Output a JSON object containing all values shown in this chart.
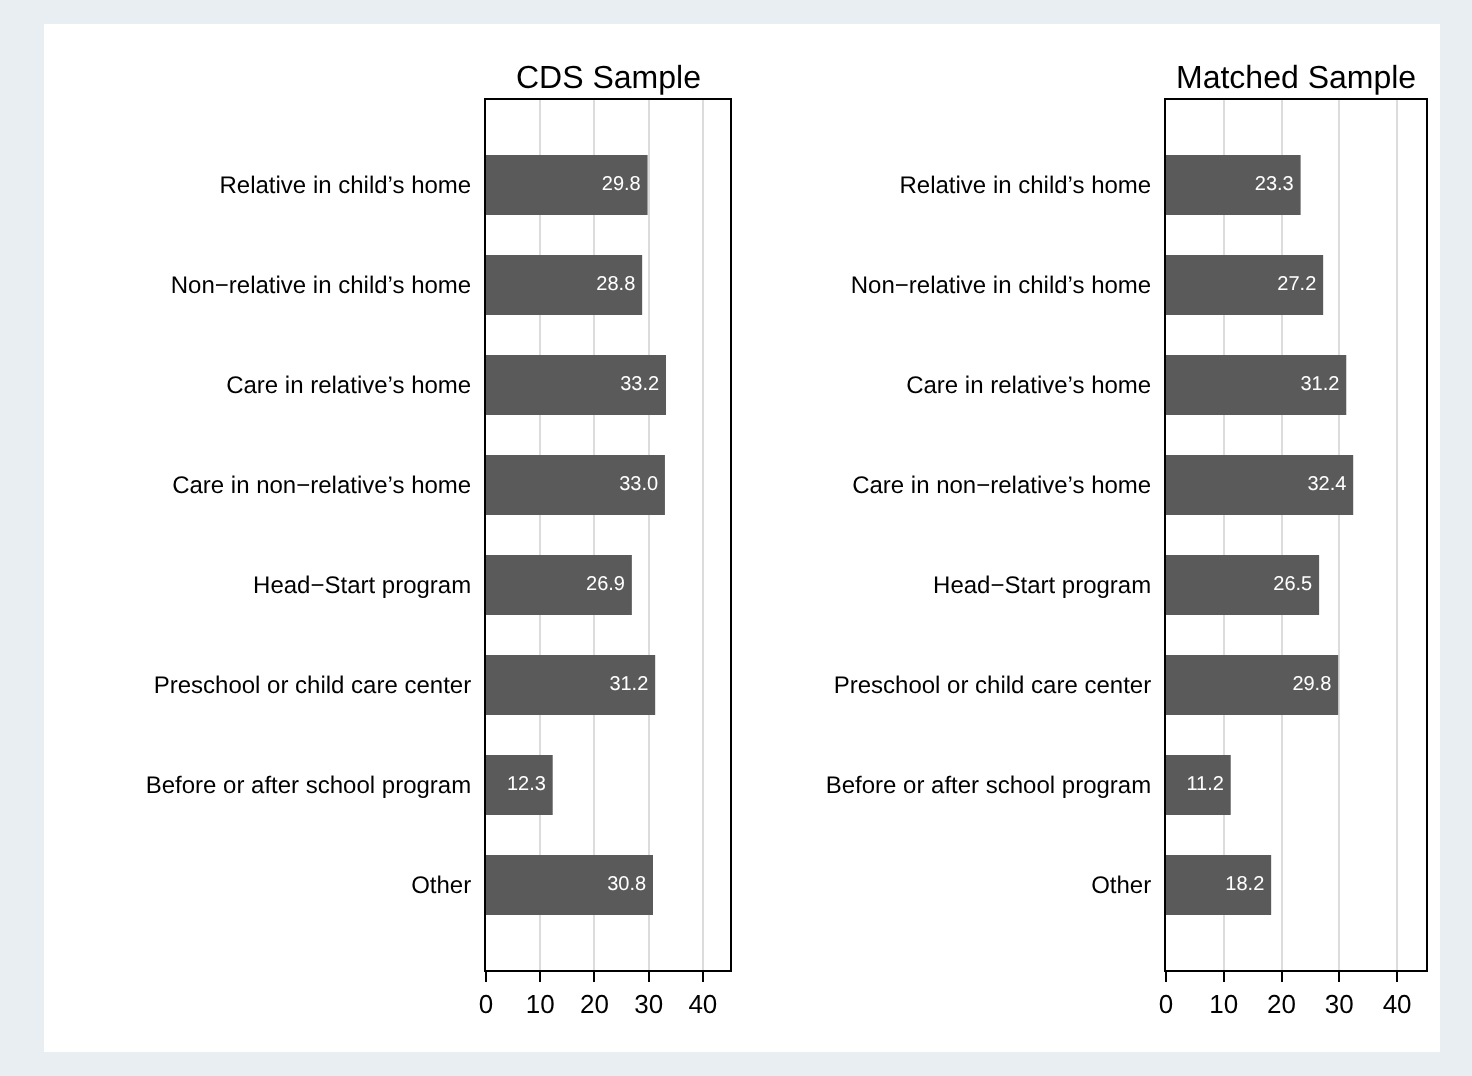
{
  "chart_data": [
    {
      "type": "bar",
      "orientation": "horizontal",
      "title": "CDS Sample",
      "categories": [
        "Relative in child’s home",
        "Non−relative in child’s home",
        "Care in relative’s home",
        "Care in non−relative’s home",
        "Head−Start program",
        "Preschool or child care center",
        "Before or after school program",
        "Other"
      ],
      "values": [
        29.8,
        28.8,
        33.2,
        33.0,
        26.9,
        31.2,
        12.3,
        30.8
      ],
      "value_labels": [
        "29.8",
        "28.8",
        "33.2",
        "33.0",
        "26.9",
        "31.2",
        "12.3",
        "30.8"
      ],
      "color": "#5a5a5a",
      "xlim": [
        0,
        45
      ],
      "xticks": [
        0,
        10,
        20,
        30,
        40
      ],
      "grid": "x"
    },
    {
      "type": "bar",
      "orientation": "horizontal",
      "title": "Matched Sample",
      "categories": [
        "Relative in child’s home",
        "Non−relative in child’s home",
        "Care in relative’s home",
        "Care in non−relative’s home",
        "Head−Start program",
        "Preschool or child care center",
        "Before or after school program",
        "Other"
      ],
      "values": [
        23.3,
        27.2,
        31.2,
        32.4,
        26.5,
        29.8,
        11.2,
        18.2
      ],
      "value_labels": [
        "23.3",
        "27.2",
        "31.2",
        "32.4",
        "26.5",
        "29.8",
        "11.2",
        "18.2"
      ],
      "color": "#5a5a5a",
      "xlim": [
        0,
        45
      ],
      "xticks": [
        0,
        10,
        20,
        30,
        40
      ],
      "grid": "x"
    }
  ]
}
